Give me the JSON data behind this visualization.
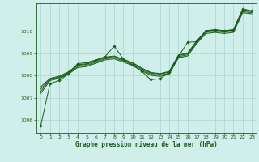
{
  "xlabel": "Graphe pression niveau de la mer (hPa)",
  "background_color": "#d0eeea",
  "grid_color": "#b0d8d4",
  "line_color": "#1a5c1a",
  "xlim": [
    -0.5,
    23.5
  ],
  "ylim": [
    1005.4,
    1011.3
  ],
  "yticks": [
    1006,
    1007,
    1008,
    1009,
    1010
  ],
  "xticks": [
    0,
    1,
    2,
    3,
    4,
    5,
    6,
    7,
    8,
    9,
    10,
    11,
    12,
    13,
    14,
    15,
    16,
    17,
    18,
    19,
    20,
    21,
    22,
    23
  ],
  "smooth_lines": [
    {
      "x": [
        0,
        1,
        2,
        3,
        4,
        5,
        6,
        7,
        8,
        9,
        10,
        11,
        12,
        13,
        14,
        15,
        16,
        17,
        18,
        19,
        20,
        21,
        22,
        23
      ],
      "y": [
        1007.2,
        1007.78,
        1007.88,
        1008.07,
        1008.37,
        1008.42,
        1008.57,
        1008.72,
        1008.77,
        1008.62,
        1008.47,
        1008.22,
        1008.02,
        1007.97,
        1008.07,
        1008.82,
        1008.9,
        1009.47,
        1009.92,
        1009.97,
        1009.92,
        1009.97,
        1010.87,
        1010.82
      ]
    },
    {
      "x": [
        0,
        1,
        2,
        3,
        4,
        5,
        6,
        7,
        8,
        9,
        10,
        11,
        12,
        13,
        14,
        15,
        16,
        17,
        18,
        19,
        20,
        21,
        22,
        23
      ],
      "y": [
        1007.3,
        1007.82,
        1007.92,
        1008.1,
        1008.42,
        1008.47,
        1008.62,
        1008.77,
        1008.82,
        1008.67,
        1008.52,
        1008.27,
        1008.07,
        1008.02,
        1008.12,
        1008.87,
        1008.95,
        1009.52,
        1009.97,
        1010.02,
        1009.97,
        1010.02,
        1010.92,
        1010.87
      ]
    },
    {
      "x": [
        0,
        1,
        2,
        3,
        4,
        5,
        6,
        7,
        8,
        9,
        10,
        11,
        12,
        13,
        14,
        15,
        16,
        17,
        18,
        19,
        20,
        21,
        22,
        23
      ],
      "y": [
        1007.4,
        1007.85,
        1007.95,
        1008.15,
        1008.47,
        1008.52,
        1008.67,
        1008.82,
        1008.87,
        1008.72,
        1008.57,
        1008.32,
        1008.12,
        1008.07,
        1008.17,
        1008.92,
        1009.0,
        1009.57,
        1010.02,
        1010.07,
        1010.02,
        1010.07,
        1010.97,
        1010.92
      ]
    },
    {
      "x": [
        0,
        1,
        2,
        3,
        4,
        5,
        6,
        7,
        8,
        9,
        10,
        11,
        12,
        13,
        14,
        15,
        16,
        17,
        18,
        19,
        20,
        21,
        22,
        23
      ],
      "y": [
        1007.5,
        1007.88,
        1007.98,
        1008.18,
        1008.5,
        1008.55,
        1008.7,
        1008.85,
        1008.9,
        1008.75,
        1008.6,
        1008.35,
        1008.15,
        1008.1,
        1008.2,
        1008.95,
        1009.03,
        1009.6,
        1010.05,
        1010.1,
        1010.05,
        1010.1,
        1011.0,
        1010.95
      ]
    }
  ],
  "jagged_line": {
    "x": [
      0,
      1,
      2,
      3,
      4,
      5,
      6,
      7,
      8,
      9,
      10,
      11,
      12,
      13,
      14,
      15,
      16,
      17,
      18,
      19,
      20,
      21,
      22,
      23
    ],
    "y": [
      1005.75,
      1007.65,
      1007.78,
      1008.08,
      1008.55,
      1008.6,
      1008.72,
      1008.87,
      1009.35,
      1008.75,
      1008.48,
      1008.2,
      1007.82,
      1007.87,
      1008.15,
      1008.88,
      1009.52,
      1009.55,
      1010.05,
      1010.08,
      1010.05,
      1010.08,
      1011.05,
      1010.95
    ]
  }
}
